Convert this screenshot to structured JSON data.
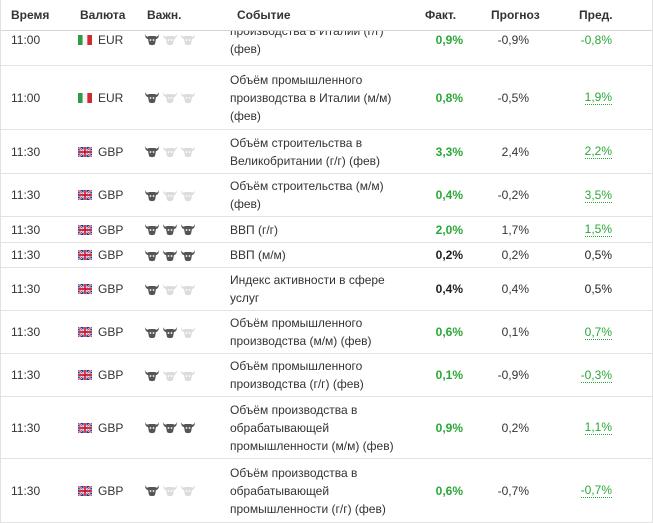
{
  "header": {
    "time": "Время",
    "currency": "Валюта",
    "importance": "Важн.",
    "event": "Событие",
    "actual": "Факт.",
    "forecast": "Прогноз",
    "previous": "Пред."
  },
  "rows": [
    {
      "time": "11:00",
      "flag": "italy-flag",
      "currency": "EUR",
      "importance": 1,
      "event_lines": [
        "производства в Италии (г/г)",
        "(фев)"
      ],
      "actual": "0,9%",
      "actual_color": "#2aa837",
      "forecast": "-0,9%",
      "previous": "-0,8%",
      "previous_color": "#2aa837",
      "previous_underlined": false
    },
    {
      "time": "11:00",
      "flag": "italy-flag",
      "currency": "EUR",
      "importance": 1,
      "event_lines": [
        "Объём промышленного",
        "производства в Италии (м/м)",
        "(фев)"
      ],
      "actual": "0,8%",
      "actual_color": "#2aa837",
      "forecast": "-0,5%",
      "previous": "1,9%",
      "previous_color": "#2aa837",
      "previous_underlined": true
    },
    {
      "time": "11:30",
      "flag": "uk-flag",
      "currency": "GBP",
      "importance": 1,
      "event_lines": [
        "Объём строительства в",
        "Великобритании (г/г) (фев)"
      ],
      "actual": "3,3%",
      "actual_color": "#2aa837",
      "forecast": "2,4%",
      "previous": "2,2%",
      "previous_color": "#2aa837",
      "previous_underlined": true
    },
    {
      "time": "11:30",
      "flag": "uk-flag",
      "currency": "GBP",
      "importance": 1,
      "event_lines": [
        "Объём строительства (м/м)",
        "(фев)"
      ],
      "actual": "0,4%",
      "actual_color": "#2aa837",
      "forecast": "-0,2%",
      "previous": "3,5%",
      "previous_color": "#2aa837",
      "previous_underlined": true
    },
    {
      "time": "11:30",
      "flag": "uk-flag",
      "currency": "GBP",
      "importance": 3,
      "event_lines": [
        "ВВП (г/г)"
      ],
      "actual": "2,0%",
      "actual_color": "#2aa837",
      "forecast": "1,7%",
      "previous": "1,5%",
      "previous_color": "#2aa837",
      "previous_underlined": true
    },
    {
      "time": "11:30",
      "flag": "uk-flag",
      "currency": "GBP",
      "importance": 3,
      "event_lines": [
        "ВВП (м/м)"
      ],
      "actual": "0,2%",
      "actual_color": "#222222",
      "forecast": "0,2%",
      "previous": "0,5%",
      "previous_color": "#222222",
      "previous_underlined": false
    },
    {
      "time": "11:30",
      "flag": "uk-flag",
      "currency": "GBP",
      "importance": 1,
      "event_lines": [
        "Индекс активности в сфере",
        "услуг"
      ],
      "actual": "0,4%",
      "actual_color": "#222222",
      "forecast": "0,4%",
      "previous": "0,5%",
      "previous_color": "#222222",
      "previous_underlined": false
    },
    {
      "time": "11:30",
      "flag": "uk-flag",
      "currency": "GBP",
      "importance": 2,
      "event_lines": [
        "Объём промышленного",
        "производства (м/м) (фев)"
      ],
      "actual": "0,6%",
      "actual_color": "#2aa837",
      "forecast": "0,1%",
      "previous": "0,7%",
      "previous_color": "#2aa837",
      "previous_underlined": true
    },
    {
      "time": "11:30",
      "flag": "uk-flag",
      "currency": "GBP",
      "importance": 1,
      "event_lines": [
        "Объём промышленного",
        "производства (г/г) (фев)"
      ],
      "actual": "0,1%",
      "actual_color": "#2aa837",
      "forecast": "-0,9%",
      "previous": "-0,3%",
      "previous_color": "#2aa837",
      "previous_underlined": true
    },
    {
      "time": "11:30",
      "flag": "uk-flag",
      "currency": "GBP",
      "importance": 3,
      "event_lines": [
        "Объём производства в",
        "обрабатывающей",
        "промышленности (м/м) (фев)"
      ],
      "actual": "0,9%",
      "actual_color": "#2aa837",
      "forecast": "0,2%",
      "previous": "1,1%",
      "previous_color": "#2aa837",
      "previous_underlined": true
    },
    {
      "time": "11:30",
      "flag": "uk-flag",
      "currency": "GBP",
      "importance": 1,
      "event_lines": [
        "Объём производства в",
        "обрабатывающей",
        "промышленности (г/г) (фев)"
      ],
      "actual": "0,6%",
      "actual_color": "#2aa837",
      "forecast": "-0,7%",
      "previous": "-0,7%",
      "previous_color": "#2aa837",
      "previous_underlined": true
    }
  ]
}
